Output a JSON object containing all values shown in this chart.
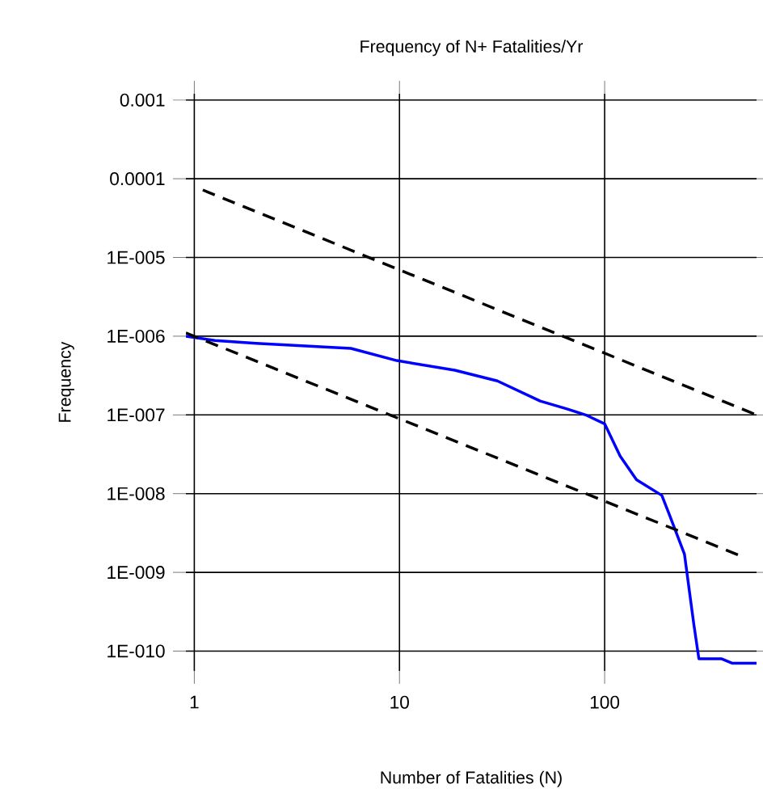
{
  "chart_data": {
    "type": "line",
    "title": "Frequency of N+ Fatalities/Yr",
    "xlabel": "Number of Fatalities (N)",
    "ylabel": "Frequency",
    "log": "xy",
    "grid": true,
    "marker": "none",
    "xlim": [
      0.91,
      550
    ],
    "ylim": [
      5.6e-11,
      0.0012
    ],
    "xticks": [
      1,
      10,
      100
    ],
    "yticks": [
      {
        "value": 0.001,
        "label": "0.001"
      },
      {
        "value": 0.0001,
        "label": "0.0001"
      },
      {
        "value": 1e-05,
        "label": "1E-005"
      },
      {
        "value": 1e-06,
        "label": "1E-006"
      },
      {
        "value": 1e-07,
        "label": "1E-007"
      },
      {
        "value": 1e-08,
        "label": "1E-008"
      },
      {
        "value": 1e-09,
        "label": "1E-009"
      },
      {
        "value": 1e-10,
        "label": "1E-010"
      }
    ],
    "series": [
      {
        "color": "#0000ff",
        "line_style": "solid",
        "x": [
          0.91,
          1.26,
          2,
          5.8,
          9.7,
          18.6,
          30,
          48.5,
          65,
          80.8,
          100,
          119,
          143,
          190,
          208,
          245,
          272,
          288,
          370,
          420,
          550
        ],
        "values": [
          1e-06,
          8.8e-07,
          8.1e-07,
          7e-07,
          4.9e-07,
          3.7e-07,
          2.7e-07,
          1.5e-07,
          1.2e-07,
          1e-07,
          7.7e-08,
          3e-08,
          1.5e-08,
          9.5e-09,
          5.2e-09,
          1.7e-09,
          2.2e-10,
          8e-11,
          8e-11,
          7e-11,
          7e-11
        ]
      },
      {
        "color": "#000000",
        "line_style": "dashed",
        "x": [
          1.1,
          550
        ],
        "values": [
          7.2e-05,
          1e-07
        ]
      },
      {
        "color": "#000000",
        "line_style": "dashed",
        "x": [
          0.91,
          466
        ],
        "values": [
          1.1e-06,
          1.6e-09
        ]
      }
    ]
  }
}
